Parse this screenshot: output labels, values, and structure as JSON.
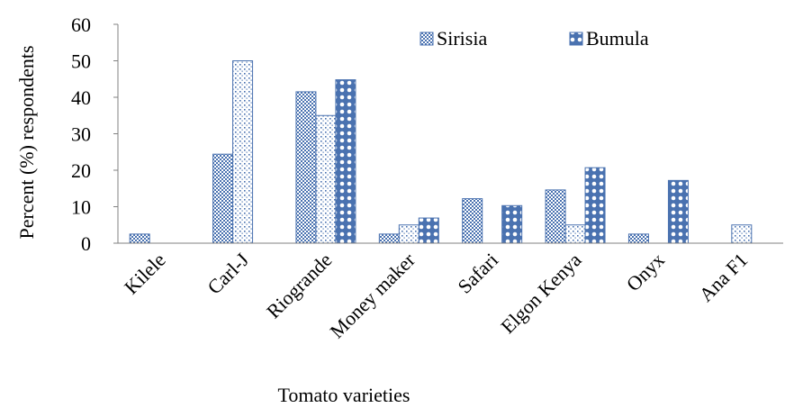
{
  "chart_data": {
    "type": "bar",
    "title": "",
    "xlabel": "Tomato varieties",
    "ylabel": "Percent (%) respondents",
    "ylim": [
      0,
      60
    ],
    "yticks": [
      0,
      10,
      20,
      30,
      40,
      50,
      60
    ],
    "grid": false,
    "legend_position": "top-right",
    "categories": [
      "Kilele",
      "Carl-J",
      "Riogrande",
      "Money maker",
      "Safari",
      "Elgon Kenya",
      "Onyx",
      "Ana F1"
    ],
    "series": [
      {
        "name": "Sirisia",
        "pattern": "checker",
        "values": [
          2.5,
          24.4,
          41.5,
          2.5,
          12.2,
          14.6,
          2.5,
          null
        ]
      },
      {
        "name": "",
        "pattern": "dots",
        "values": [
          null,
          50,
          35,
          5,
          null,
          5,
          null,
          5
        ]
      },
      {
        "name": "Bumula",
        "pattern": "circles",
        "values": [
          null,
          null,
          44.8,
          6.9,
          10.3,
          20.7,
          17.2,
          null
        ]
      }
    ],
    "legend": [
      "Sirisia",
      "Bumula"
    ]
  },
  "colors": {
    "bar_pattern": "#4a72b0",
    "axis": "#808080",
    "text": "#000000"
  }
}
